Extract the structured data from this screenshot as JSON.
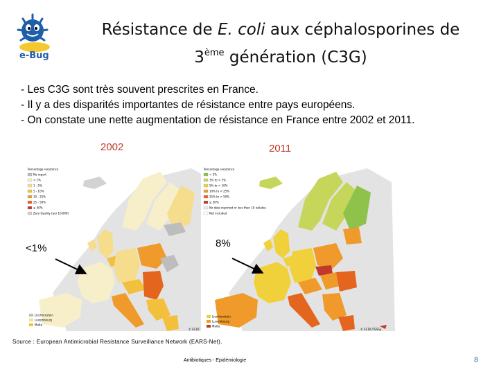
{
  "logo": {
    "text": "e-Bug",
    "icon": "bug-logo-icon",
    "colors": {
      "blue": "#1f5ea8",
      "yellow": "#f2c318"
    }
  },
  "title": {
    "part1": "Résistance de ",
    "italic": "E. coli",
    "part2": " aux céphalosporines de",
    "line2_pre": "3",
    "sup": "ème",
    "line2_post": " génération (C3G)"
  },
  "bullets": [
    "- Les C3G sont très souvent prescrites en France.",
    "- Il y a des disparités importantes de résistance entre pays européens.",
    "- On constate une nette augmentation de résistance en France entre 2002 et 2011."
  ],
  "maps": {
    "left": {
      "year": "2002",
      "france_value": "<1%",
      "legend_title": "Percentage resistance",
      "legend_items": [
        "No report",
        "< 1%",
        "1 - 5%",
        "5 - 10%",
        "10 - 25%",
        "25 - 50%",
        "≥ 50%",
        "Zero Quality (per 10,000)"
      ],
      "legend_colors": [
        "#bdbdbd",
        "#f7efc9",
        "#f6dc8d",
        "#f3c03d",
        "#ef9a2a",
        "#e4651e",
        "#c0392b",
        "#cfcfcf"
      ],
      "bottom_legend": [
        "Liechtenstein",
        "Luxembourg",
        "Malta"
      ],
      "credit": "© ECDC"
    },
    "right": {
      "year": "2011",
      "france_value": "8%",
      "legend_title": "Percentage resistance",
      "legend_items": [
        "< 1%",
        "1% to < 5%",
        "5% to < 10%",
        "10% to < 25%",
        "25% to < 50%",
        "≥ 50%",
        "No data reported or less than 10 isolates",
        "Not included"
      ],
      "legend_colors": [
        "#8fc24a",
        "#c6d65a",
        "#f0d13b",
        "#ef9a2a",
        "#e4651e",
        "#c0392b",
        "#ececec",
        "#ffffff"
      ],
      "bottom_legend": [
        "Liechtenstein",
        "Luxembourg",
        "Malta"
      ],
      "credit": "© ECDC/TESSy"
    }
  },
  "source": "Source : European Antimicrobial Resistance Surveillance Network (EARS-Net).",
  "footer": "Antibiotiques - Epidémiologie",
  "page_number": "8",
  "colors": {
    "year_label": "#c0392b",
    "page_number": "#3a6db5"
  }
}
